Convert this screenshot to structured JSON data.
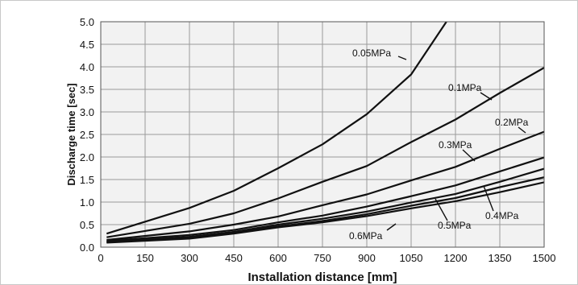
{
  "chart_data": {
    "type": "line",
    "title": "",
    "xlabel": "Installation distance [mm]",
    "ylabel": "Discharge time [sec]",
    "xlim": [
      0,
      1500
    ],
    "ylim": [
      0,
      5.0
    ],
    "xticks": [
      "0",
      "150",
      "300",
      "450",
      "600",
      "750",
      "900",
      "1050",
      "1200",
      "1350",
      "1500"
    ],
    "yticks": [
      "0.0",
      "0.5",
      "1.0",
      "1.5",
      "2.0",
      "2.5",
      "3.0",
      "3.5",
      "4.0",
      "4.5",
      "5.0"
    ],
    "grid": true,
    "legend": "inline labels",
    "colors": {
      "line": "#111111",
      "plot_bg": "#f2f2f2",
      "grid": "#9a9a9a"
    },
    "series": [
      {
        "name": "0.05MPa",
        "x": [
          20,
          300,
          450,
          600,
          750,
          900,
          1050,
          1200
        ],
        "y": [
          0.3,
          0.87,
          1.25,
          1.75,
          2.28,
          2.95,
          3.83,
          5.3
        ]
      },
      {
        "name": "0.1MPa",
        "x": [
          20,
          300,
          450,
          600,
          750,
          900,
          1050,
          1200,
          1350,
          1500
        ],
        "y": [
          0.22,
          0.52,
          0.75,
          1.08,
          1.45,
          1.8,
          2.33,
          2.83,
          3.42,
          3.98
        ]
      },
      {
        "name": "0.2MPa",
        "x": [
          20,
          300,
          450,
          600,
          750,
          900,
          1050,
          1200,
          1350,
          1500
        ],
        "y": [
          0.16,
          0.35,
          0.5,
          0.68,
          0.93,
          1.17,
          1.48,
          1.78,
          2.18,
          2.56
        ]
      },
      {
        "name": "0.3MPa",
        "x": [
          20,
          300,
          450,
          600,
          750,
          900,
          1050,
          1200,
          1350,
          1500
        ],
        "y": [
          0.14,
          0.27,
          0.38,
          0.55,
          0.7,
          0.9,
          1.13,
          1.37,
          1.68,
          1.99
        ]
      },
      {
        "name": "0.4MPa",
        "x": [
          20,
          300,
          450,
          600,
          750,
          900,
          1050,
          1200,
          1350,
          1500
        ],
        "y": [
          0.12,
          0.23,
          0.34,
          0.5,
          0.63,
          0.79,
          0.99,
          1.18,
          1.45,
          1.74
        ]
      },
      {
        "name": "0.5MPa",
        "x": [
          20,
          300,
          450,
          600,
          750,
          900,
          1050,
          1200,
          1350,
          1500
        ],
        "y": [
          0.11,
          0.21,
          0.32,
          0.46,
          0.58,
          0.73,
          0.92,
          1.09,
          1.33,
          1.55
        ]
      },
      {
        "name": "0.6MPa",
        "x": [
          20,
          300,
          450,
          600,
          750,
          900,
          1050,
          1200,
          1350,
          1500
        ],
        "y": [
          0.1,
          0.19,
          0.3,
          0.44,
          0.55,
          0.69,
          0.86,
          1.02,
          1.22,
          1.44
        ]
      }
    ]
  }
}
